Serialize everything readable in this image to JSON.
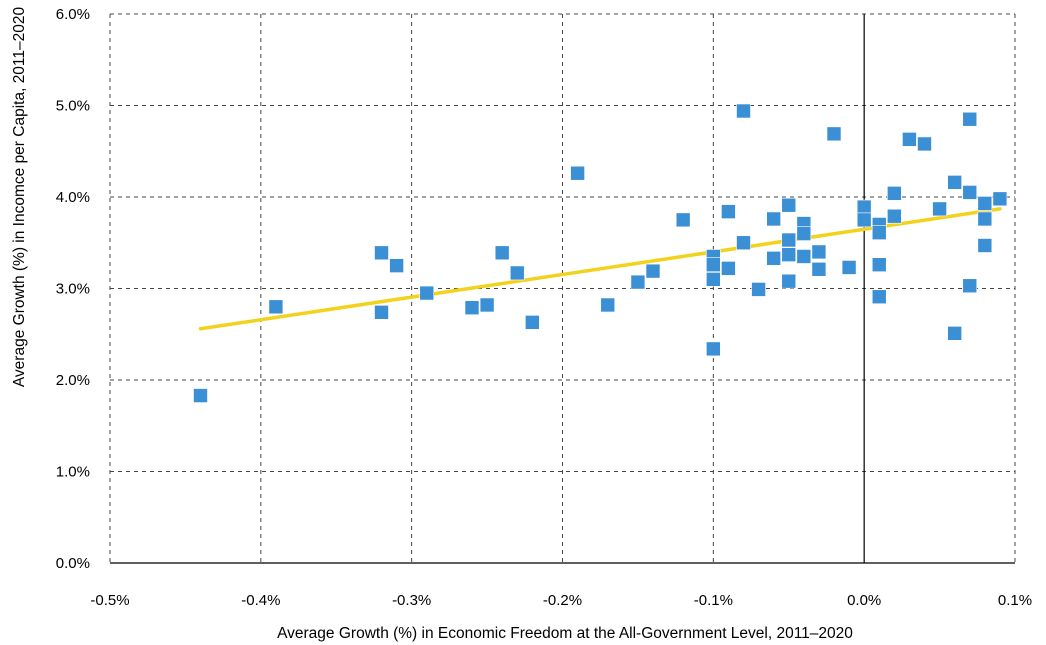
{
  "chart_data": {
    "type": "scatter",
    "xlabel": "Average Growth (%) in Economic Freedom at the All-Government Level, 2011–2020",
    "ylabel": "Average Growth (%) in Incomce per Capita, 2011–2020",
    "xlim": [
      -0.5,
      0.1
    ],
    "ylim": [
      0.0,
      6.0
    ],
    "x_ticks": [
      -0.5,
      -0.4,
      -0.3,
      -0.2,
      -0.1,
      0.0,
      0.1
    ],
    "x_tick_labels": [
      "-0.5%",
      "-0.4%",
      "-0.3%",
      "-0.2%",
      "-0.1%",
      "0.0%",
      "0.1%"
    ],
    "y_ticks": [
      0,
      1,
      2,
      3,
      4,
      5,
      6
    ],
    "y_tick_labels": [
      "0.0%",
      "1.0%",
      "2.0%",
      "3.0%",
      "4.0%",
      "5.0%",
      "6.0%"
    ],
    "grid": true,
    "marker_color": "#3B8FD4",
    "trendline_color": "#F2D21C",
    "trendline": {
      "x": [
        -0.44,
        0.09
      ],
      "y": [
        2.56,
        3.87
      ]
    },
    "points": [
      {
        "x": -0.44,
        "y": 1.83
      },
      {
        "x": -0.39,
        "y": 2.8
      },
      {
        "x": -0.32,
        "y": 3.39
      },
      {
        "x": -0.32,
        "y": 2.74
      },
      {
        "x": -0.31,
        "y": 3.25
      },
      {
        "x": -0.29,
        "y": 2.95
      },
      {
        "x": -0.26,
        "y": 2.79
      },
      {
        "x": -0.25,
        "y": 2.82
      },
      {
        "x": -0.24,
        "y": 3.39
      },
      {
        "x": -0.23,
        "y": 3.17
      },
      {
        "x": -0.22,
        "y": 2.63
      },
      {
        "x": -0.19,
        "y": 4.26
      },
      {
        "x": -0.17,
        "y": 2.82
      },
      {
        "x": -0.15,
        "y": 3.07
      },
      {
        "x": -0.14,
        "y": 3.19
      },
      {
        "x": -0.12,
        "y": 3.75
      },
      {
        "x": -0.1,
        "y": 3.35
      },
      {
        "x": -0.1,
        "y": 3.26
      },
      {
        "x": -0.1,
        "y": 3.1
      },
      {
        "x": -0.1,
        "y": 2.34
      },
      {
        "x": -0.09,
        "y": 3.84
      },
      {
        "x": -0.09,
        "y": 3.22
      },
      {
        "x": -0.08,
        "y": 4.94
      },
      {
        "x": -0.08,
        "y": 3.5
      },
      {
        "x": -0.07,
        "y": 2.99
      },
      {
        "x": -0.06,
        "y": 3.76
      },
      {
        "x": -0.06,
        "y": 3.33
      },
      {
        "x": -0.05,
        "y": 3.91
      },
      {
        "x": -0.05,
        "y": 3.53
      },
      {
        "x": -0.05,
        "y": 3.37
      },
      {
        "x": -0.05,
        "y": 3.08
      },
      {
        "x": -0.04,
        "y": 3.71
      },
      {
        "x": -0.04,
        "y": 3.6
      },
      {
        "x": -0.04,
        "y": 3.35
      },
      {
        "x": -0.03,
        "y": 3.4
      },
      {
        "x": -0.03,
        "y": 3.21
      },
      {
        "x": -0.02,
        "y": 4.69
      },
      {
        "x": -0.01,
        "y": 3.23
      },
      {
        "x": 0.0,
        "y": 3.89
      },
      {
        "x": 0.0,
        "y": 3.75
      },
      {
        "x": 0.01,
        "y": 3.7
      },
      {
        "x": 0.01,
        "y": 3.61
      },
      {
        "x": 0.01,
        "y": 3.26
      },
      {
        "x": 0.01,
        "y": 2.91
      },
      {
        "x": 0.02,
        "y": 4.04
      },
      {
        "x": 0.02,
        "y": 3.79
      },
      {
        "x": 0.03,
        "y": 4.63
      },
      {
        "x": 0.04,
        "y": 4.58
      },
      {
        "x": 0.05,
        "y": 3.87
      },
      {
        "x": 0.06,
        "y": 4.16
      },
      {
        "x": 0.06,
        "y": 2.51
      },
      {
        "x": 0.07,
        "y": 4.85
      },
      {
        "x": 0.07,
        "y": 4.05
      },
      {
        "x": 0.07,
        "y": 3.03
      },
      {
        "x": 0.08,
        "y": 3.93
      },
      {
        "x": 0.08,
        "y": 3.76
      },
      {
        "x": 0.08,
        "y": 3.47
      },
      {
        "x": 0.09,
        "y": 3.98
      }
    ]
  }
}
